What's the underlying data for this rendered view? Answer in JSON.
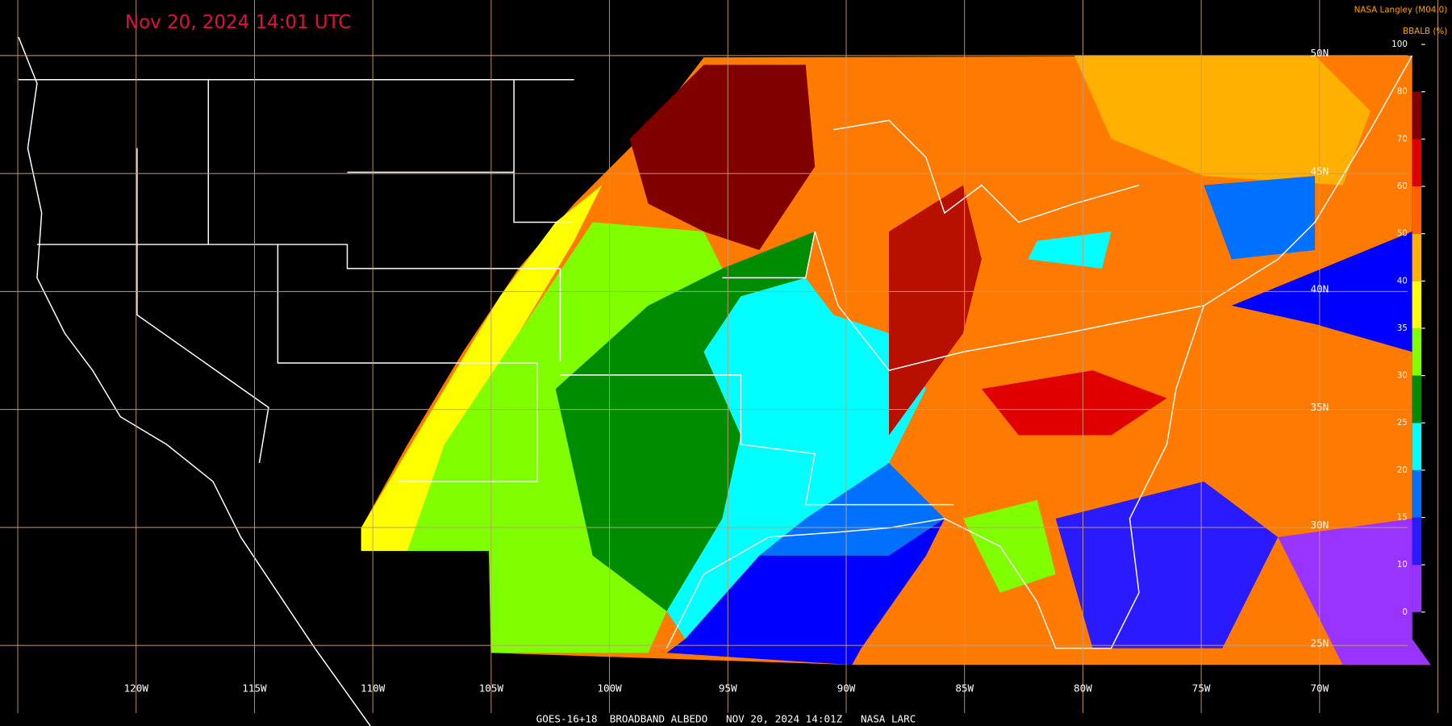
{
  "title": "Nov 20, 2024 14:01 UTC",
  "credit": "NASA Langley (M04.0)",
  "legend": {
    "title": "BBALB (%)",
    "ticks": [
      0,
      10,
      15,
      20,
      25,
      30,
      35,
      40,
      50,
      60,
      70,
      80,
      100
    ],
    "colors": [
      "#9933ff",
      "#2a1aff",
      "#0070ff",
      "#00ffff",
      "#008c00",
      "#7fff00",
      "#ffff00",
      "#ffb000",
      "#ff6000",
      "#e00000",
      "#800000"
    ]
  },
  "graticule": {
    "lon_labels": [
      "120W",
      "115W",
      "110W",
      "105W",
      "100W",
      "95W",
      "90W",
      "85W",
      "80W",
      "75W",
      "70W"
    ],
    "lat_labels": [
      "50N",
      "45N",
      "40N",
      "35N",
      "30N",
      "25N"
    ]
  },
  "footer": "GOES-16+18  BROADBAND ALBEDO   NOV 20, 2024 14:01Z   NASA LARC"
}
